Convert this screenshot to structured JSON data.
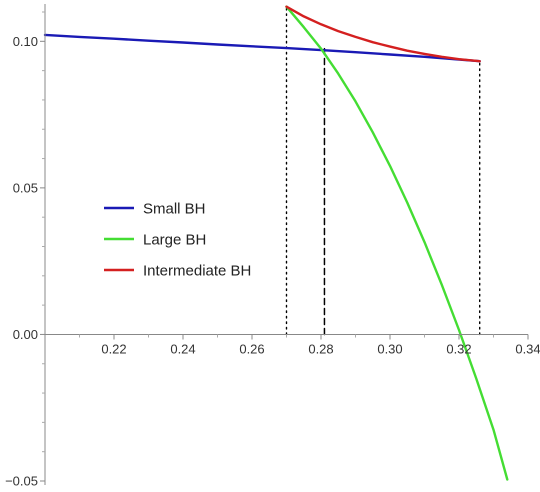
{
  "chart_data": {
    "type": "line",
    "title": "",
    "xlabel": "",
    "ylabel": "",
    "xlim": [
      0.2,
      0.34
    ],
    "ylim": [
      -0.05,
      0.11
    ],
    "x_ticks": [
      "0.22",
      "0.24",
      "0.26",
      "0.28",
      "0.30",
      "0.32",
      "0.34"
    ],
    "y_ticks": [
      "-0.05",
      "0.00",
      "0.05",
      "0.10"
    ],
    "grid": false,
    "legend_placement": "left-center",
    "series": [
      {
        "name": "Small BH",
        "color": "#1a1ab5",
        "x": [
          0.2,
          0.21,
          0.22,
          0.23,
          0.24,
          0.25,
          0.26,
          0.27,
          0.28,
          0.29,
          0.3,
          0.31,
          0.32,
          0.326
        ],
        "y": [
          0.1022,
          0.1015,
          0.1009,
          0.1002,
          0.0996,
          0.0989,
          0.0983,
          0.0977,
          0.097,
          0.0963,
          0.0955,
          0.0947,
          0.0938,
          0.0932
        ]
      },
      {
        "name": "Large BH",
        "color": "#44dd33",
        "x": [
          0.27,
          0.275,
          0.28,
          0.285,
          0.29,
          0.295,
          0.3,
          0.305,
          0.31,
          0.315,
          0.32,
          0.325,
          0.33,
          0.334
        ],
        "y": [
          0.1118,
          0.1048,
          0.0975,
          0.089,
          0.0795,
          0.069,
          0.0575,
          0.045,
          0.0315,
          0.017,
          0.0015,
          -0.015,
          -0.0325,
          -0.0495
        ]
      },
      {
        "name": "Intermediate BH",
        "color": "#d42020",
        "x": [
          0.27,
          0.275,
          0.28,
          0.285,
          0.29,
          0.295,
          0.3,
          0.305,
          0.31,
          0.315,
          0.32,
          0.326
        ],
        "y": [
          0.1118,
          0.1085,
          0.1058,
          0.1035,
          0.1015,
          0.0997,
          0.0982,
          0.0968,
          0.0957,
          0.0947,
          0.0939,
          0.0932
        ]
      }
    ],
    "vertical_lines": [
      {
        "x": 0.27,
        "style": "dotted",
        "color": "#000000"
      },
      {
        "x": 0.281,
        "style": "dashed",
        "color": "#000000"
      },
      {
        "x": 0.326,
        "style": "dotted",
        "color": "#000000"
      }
    ]
  }
}
